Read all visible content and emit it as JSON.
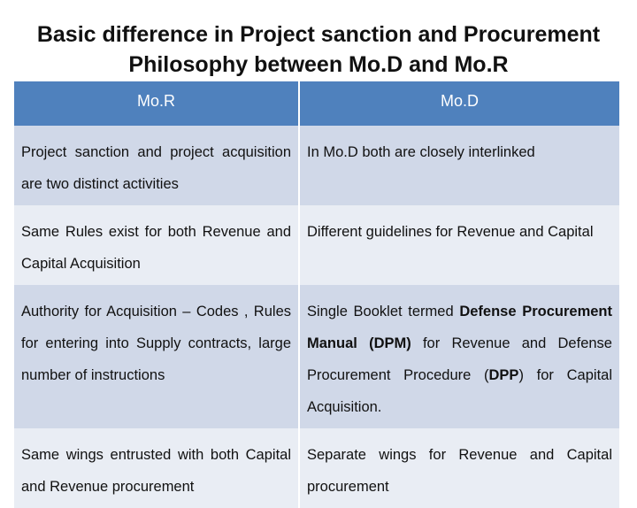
{
  "title_line1": "Basic difference in Project sanction and Procurement",
  "title_line2": "Philosophy between Mo.D and Mo.R",
  "headers": {
    "mor": "Mo.R",
    "mod": "Mo.D"
  },
  "rows": [
    {
      "mor": "Project sanction and project acquisition are two distinct activities",
      "mod": "In Mo.D both are closely interlinked"
    },
    {
      "mor": "Same Rules exist for both Revenue and Capital Acquisition",
      "mod": "Different guidelines for Revenue and Capital"
    },
    {
      "mor": "Authority for Acquisition – Codes , Rules for entering into Supply contracts, large number of instructions",
      "mod_parts": {
        "p1": "Single Booklet termed ",
        "b1": "Defense Procurement Manual (DPM)",
        "p2": " for Revenue and Defense Procurement Procedure (",
        "b2": "DPP",
        "p3": ") for Capital Acquisition."
      }
    },
    {
      "mor": "Same wings entrusted with both Capital and Revenue procurement",
      "mod": "Separate wings for Revenue and Capital procurement"
    }
  ],
  "colors": {
    "header_bg": "#4f81bd",
    "row_odd_bg": "#d0d8e8",
    "row_even_bg": "#e9edf4"
  }
}
